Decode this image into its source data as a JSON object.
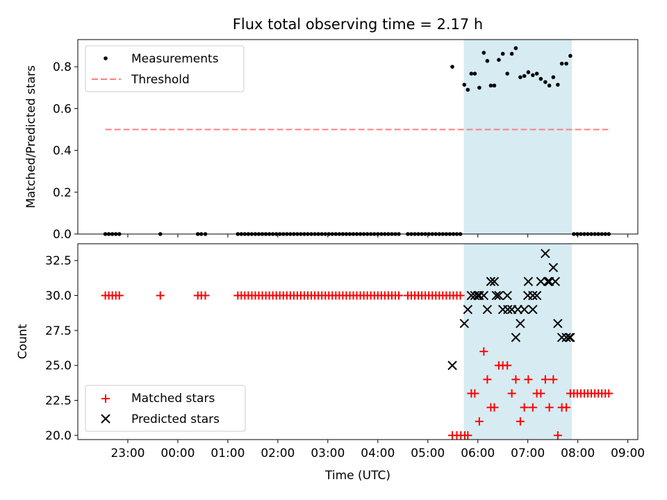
{
  "chart_data": [
    {
      "type": "scatter",
      "title": "Flux total observing time = 2.17 h",
      "ylabel": "Matched/Predicted stars",
      "ylim": [
        0,
        0.93
      ],
      "xlim": [
        22.0,
        33.2
      ],
      "yticks": [
        0.0,
        0.2,
        0.4,
        0.6,
        0.8
      ],
      "ytick_labels": [
        "0.0",
        "0.2",
        "0.4",
        "0.6",
        "0.8"
      ],
      "shaded_interval": [
        29.72,
        31.88
      ],
      "shade_color": "#add8e6",
      "legend": {
        "position": "top-left",
        "entries": [
          "Measurements",
          "Threshold"
        ]
      },
      "threshold": {
        "name": "Threshold",
        "y": 0.5,
        "x_range": [
          22.55,
          32.65
        ],
        "color": "#ff7f7f",
        "style": "dashed"
      },
      "series": [
        {
          "name": "Measurements",
          "marker": "dot",
          "color": "#000000",
          "x": [
            22.55,
            22.62,
            22.69,
            22.76,
            22.83,
            23.65,
            24.4,
            24.47,
            24.55,
            25.2,
            25.27,
            25.34,
            25.41,
            25.48,
            25.55,
            25.62,
            25.69,
            25.76,
            25.83,
            25.9,
            25.97,
            26.04,
            26.11,
            26.18,
            26.25,
            26.32,
            26.39,
            26.46,
            26.53,
            26.6,
            26.67,
            26.74,
            26.81,
            26.88,
            26.95,
            27.02,
            27.09,
            27.16,
            27.23,
            27.3,
            27.37,
            27.44,
            27.51,
            27.58,
            27.65,
            27.72,
            27.79,
            27.86,
            27.93,
            28.0,
            28.07,
            28.14,
            28.21,
            28.28,
            28.35,
            28.42,
            28.6,
            28.67,
            28.74,
            28.81,
            28.88,
            28.95,
            29.02,
            29.09,
            29.16,
            29.23,
            29.3,
            29.37,
            29.44,
            29.51,
            29.58,
            29.65,
            29.49,
            29.73,
            29.8,
            29.87,
            29.94,
            30.03,
            30.12,
            30.19,
            30.26,
            30.33,
            30.42,
            30.5,
            30.59,
            30.68,
            30.76,
            30.85,
            30.93,
            31.01,
            31.1,
            31.18,
            31.26,
            31.35,
            31.43,
            31.51,
            31.6,
            31.68,
            31.77,
            31.85,
            31.92,
            31.99,
            32.06,
            32.13,
            32.2,
            32.27,
            32.34,
            32.41,
            32.48,
            32.55,
            32.62
          ],
          "y": [
            0,
            0,
            0,
            0,
            0,
            0,
            0,
            0,
            0,
            0,
            0,
            0,
            0,
            0,
            0,
            0,
            0,
            0,
            0,
            0,
            0,
            0,
            0,
            0,
            0,
            0,
            0,
            0,
            0,
            0,
            0,
            0,
            0,
            0,
            0,
            0,
            0,
            0,
            0,
            0,
            0,
            0,
            0,
            0,
            0,
            0,
            0,
            0,
            0,
            0,
            0,
            0,
            0,
            0,
            0,
            0,
            0,
            0,
            0,
            0,
            0,
            0,
            0,
            0,
            0,
            0,
            0,
            0,
            0,
            0,
            0,
            0,
            0.8,
            0.714,
            0.69,
            0.767,
            0.767,
            0.7,
            0.867,
            0.828,
            0.71,
            0.71,
            0.833,
            0.862,
            0.767,
            0.862,
            0.889,
            0.75,
            0.756,
            0.774,
            0.76,
            0.767,
            0.742,
            0.727,
            0.71,
            0.75,
            0.714,
            0.815,
            0.815,
            0.852,
            0,
            0,
            0,
            0,
            0,
            0,
            0,
            0,
            0,
            0,
            0
          ]
        }
      ]
    },
    {
      "type": "scatter",
      "ylabel": "Count",
      "xlabel": "Time (UTC)",
      "ylim": [
        19.7,
        33.7
      ],
      "xlim": [
        22.0,
        33.2
      ],
      "yticks": [
        20.0,
        22.5,
        25.0,
        27.5,
        30.0,
        32.5
      ],
      "ytick_labels": [
        "20.0",
        "22.5",
        "25.0",
        "27.5",
        "30.0",
        "32.5"
      ],
      "xticks": [
        23,
        24,
        25,
        26,
        27,
        28,
        29,
        30,
        31,
        32,
        33
      ],
      "xtick_labels": [
        "23:00",
        "00:00",
        "01:00",
        "02:00",
        "03:00",
        "04:00",
        "05:00",
        "06:00",
        "07:00",
        "08:00",
        "09:00"
      ],
      "shaded_interval": [
        29.72,
        31.88
      ],
      "shade_color": "#add8e6",
      "legend": {
        "position": "bottom-left",
        "entries": [
          "Matched stars",
          "Predicted stars"
        ]
      },
      "series": [
        {
          "name": "Matched stars",
          "marker": "plus",
          "color": "#ff0000",
          "x": [
            22.55,
            22.62,
            22.69,
            22.76,
            22.83,
            23.65,
            24.4,
            24.47,
            24.55,
            25.2,
            25.27,
            25.34,
            25.41,
            25.48,
            25.55,
            25.62,
            25.69,
            25.76,
            25.83,
            25.9,
            25.97,
            26.04,
            26.11,
            26.18,
            26.25,
            26.32,
            26.39,
            26.46,
            26.53,
            26.6,
            26.67,
            26.74,
            26.81,
            26.88,
            26.95,
            27.02,
            27.09,
            27.16,
            27.23,
            27.3,
            27.37,
            27.44,
            27.51,
            27.58,
            27.65,
            27.72,
            27.79,
            27.86,
            27.93,
            28.0,
            28.07,
            28.14,
            28.21,
            28.28,
            28.35,
            28.42,
            28.6,
            28.67,
            28.74,
            28.81,
            28.88,
            28.95,
            29.02,
            29.09,
            29.16,
            29.23,
            29.3,
            29.37,
            29.44,
            29.51,
            29.58,
            29.65,
            29.49,
            29.58,
            29.66,
            29.74,
            29.8,
            29.87,
            29.94,
            30.03,
            30.12,
            30.19,
            30.26,
            30.33,
            30.42,
            30.5,
            30.59,
            30.68,
            30.76,
            30.85,
            30.93,
            31.01,
            31.1,
            31.18,
            31.26,
            31.35,
            31.43,
            31.51,
            31.6,
            31.68,
            31.77,
            31.85,
            31.92,
            31.99,
            32.06,
            32.13,
            32.2,
            32.27,
            32.34,
            32.41,
            32.48,
            32.55,
            32.62
          ],
          "y": [
            30,
            30,
            30,
            30,
            30,
            30,
            30,
            30,
            30,
            30,
            30,
            30,
            30,
            30,
            30,
            30,
            30,
            30,
            30,
            30,
            30,
            30,
            30,
            30,
            30,
            30,
            30,
            30,
            30,
            30,
            30,
            30,
            30,
            30,
            30,
            30,
            30,
            30,
            30,
            30,
            30,
            30,
            30,
            30,
            30,
            30,
            30,
            30,
            30,
            30,
            30,
            30,
            30,
            30,
            30,
            30,
            30,
            30,
            30,
            30,
            30,
            30,
            30,
            30,
            30,
            30,
            30,
            30,
            30,
            30,
            30,
            30,
            20,
            20,
            20,
            20,
            20,
            23,
            23,
            21,
            26,
            24,
            22,
            22,
            25,
            25,
            25,
            23,
            24,
            21,
            22,
            24,
            22,
            23,
            23,
            24,
            22,
            24,
            20,
            22,
            22,
            23,
            23,
            23,
            23,
            23,
            23,
            23,
            23,
            23,
            23,
            23,
            23
          ]
        },
        {
          "name": "Predicted stars",
          "marker": "x",
          "color": "#000000",
          "x": [
            29.49,
            29.73,
            29.8,
            29.87,
            29.94,
            30.03,
            30.12,
            30.19,
            30.26,
            30.33,
            30.42,
            30.5,
            30.59,
            30.68,
            30.76,
            30.85,
            30.93,
            31.01,
            31.1,
            31.18,
            31.26,
            31.35,
            31.43,
            31.51,
            31.6,
            31.68,
            31.77,
            31.85,
            31.0,
            30.0,
            30.37,
            30.6,
            30.8,
            31.1,
            31.4,
            31.55,
            31.83
          ],
          "y": [
            25,
            28,
            29,
            30,
            30,
            30,
            30,
            29,
            31,
            31,
            30,
            29,
            30,
            29,
            27,
            28,
            29,
            31,
            29,
            30,
            31,
            33,
            31,
            32,
            28,
            27,
            27,
            27,
            30,
            30,
            30,
            29,
            29,
            30,
            31,
            31,
            27
          ]
        }
      ]
    }
  ]
}
